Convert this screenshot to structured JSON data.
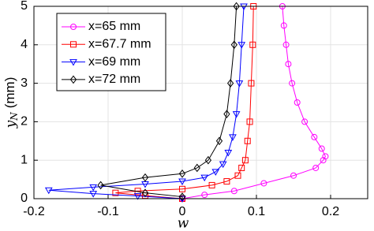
{
  "chart_data": {
    "type": "line",
    "x_label": "w",
    "y_label": {
      "main": "y",
      "sub": "N",
      "unit": "(mm)"
    },
    "xlim": [
      -0.2,
      0.25
    ],
    "ylim": [
      0,
      5
    ],
    "xticks": [
      -0.2,
      -0.1,
      0,
      0.1,
      0.2
    ],
    "yticks": [
      0,
      1,
      2,
      3,
      4,
      5
    ],
    "grid": true,
    "legend": "upper-left",
    "series": [
      {
        "name": "x=65 mm",
        "color": "#ff00ff",
        "marker": "circle",
        "x": [
          0,
          0.03,
          0.07,
          0.11,
          0.15,
          0.18,
          0.19,
          0.193,
          0.188,
          0.178,
          0.165,
          0.155,
          0.148,
          0.143,
          0.14,
          0.137,
          0.135
        ],
        "values": [
          0,
          0.1,
          0.2,
          0.4,
          0.6,
          0.8,
          1.0,
          1.1,
          1.3,
          1.6,
          2.0,
          2.5,
          3.0,
          3.5,
          4.0,
          4.5,
          5.0
        ]
      },
      {
        "name": "x=67.7 mm",
        "color": "#ff0000",
        "marker": "square",
        "x": [
          0,
          -0.05,
          -0.09,
          -0.06,
          0,
          0.04,
          0.06,
          0.075,
          0.08,
          0.085,
          0.088,
          0.091,
          0.093,
          0.095,
          0.096
        ],
        "values": [
          0,
          0.08,
          0.15,
          0.2,
          0.25,
          0.35,
          0.45,
          0.6,
          0.8,
          1.0,
          1.5,
          2.0,
          3.0,
          4.0,
          5.0
        ]
      },
      {
        "name": "x=69 mm",
        "color": "#0000ff",
        "marker": "triangle",
        "x": [
          0,
          -0.06,
          -0.12,
          -0.18,
          -0.12,
          -0.05,
          0,
          0.03,
          0.045,
          0.055,
          0.062,
          0.068,
          0.073,
          0.077,
          0.08,
          0.083
        ],
        "values": [
          0,
          0.07,
          0.13,
          0.22,
          0.3,
          0.38,
          0.45,
          0.55,
          0.7,
          0.9,
          1.2,
          1.6,
          2.2,
          3.0,
          4.0,
          5.0
        ]
      },
      {
        "name": "x=72 mm",
        "color": "#000000",
        "marker": "diamond",
        "x": [
          0,
          -0.05,
          -0.11,
          -0.05,
          0,
          0.02,
          0.035,
          0.05,
          0.06,
          0.065,
          0.07,
          0.073
        ],
        "values": [
          0.05,
          0.15,
          0.35,
          0.55,
          0.65,
          0.8,
          1.0,
          1.5,
          2.2,
          3.0,
          4.0,
          5.0
        ]
      }
    ]
  }
}
